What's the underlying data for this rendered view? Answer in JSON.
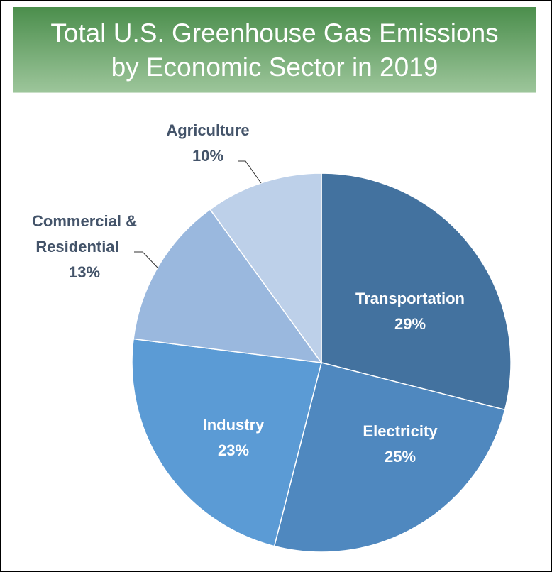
{
  "chart_data": {
    "type": "pie",
    "title": [
      "Total U.S. Greenhouse Gas Emissions",
      "by Economic Sector in 2019"
    ],
    "start_angle": "top, clockwise",
    "slices": [
      {
        "label": "Transportation",
        "value": 29,
        "display": "29%",
        "color": "#43729f",
        "label_color": "#ffffff"
      },
      {
        "label": "Electricity",
        "value": 25,
        "display": "25%",
        "color": "#4f88bf",
        "label_color": "#ffffff"
      },
      {
        "label": "Industry",
        "value": 23,
        "display": "23%",
        "color": "#5b9bd5",
        "label_color": "#ffffff"
      },
      {
        "label": "Commercial & Residential",
        "value": 13,
        "display": "13%",
        "color": "#9ab8de",
        "label_color": "#44546a"
      },
      {
        "label": "Agriculture",
        "value": 10,
        "display": "10%",
        "color": "#bdd0e9",
        "label_color": "#44546a"
      }
    ],
    "title_banner_colors": [
      "#4b8e4c",
      "#9cc59a"
    ]
  }
}
